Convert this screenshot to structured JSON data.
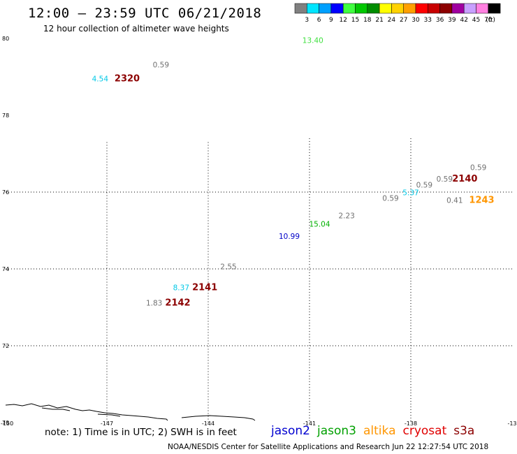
{
  "header": {
    "title": "12:00 – 23:59 UTC 06/21/2018",
    "subtitle": "12 hour collection of altimeter wave heights"
  },
  "colorbar": {
    "unit": "(ft)",
    "bins": [
      {
        "label": "3",
        "color": "#808080"
      },
      {
        "label": "6",
        "color": "#00e5ff"
      },
      {
        "label": "9",
        "color": "#00a0ff"
      },
      {
        "label": "12",
        "color": "#0000ff"
      },
      {
        "label": "15",
        "color": "#40ff40"
      },
      {
        "label": "18",
        "color": "#00c800"
      },
      {
        "label": "21",
        "color": "#008c00"
      },
      {
        "label": "24",
        "color": "#ffff00"
      },
      {
        "label": "27",
        "color": "#ffd200"
      },
      {
        "label": "30",
        "color": "#ffa000"
      },
      {
        "label": "33",
        "color": "#ff0000"
      },
      {
        "label": "36",
        "color": "#c80000"
      },
      {
        "label": "39",
        "color": "#8c0000"
      },
      {
        "label": "42",
        "color": "#a000a0"
      },
      {
        "label": "45",
        "color": "#c8a0ff"
      },
      {
        "label": "70",
        "color": "#ff80e0"
      },
      {
        "label": "",
        "color": "#000000"
      }
    ]
  },
  "axes": {
    "lat_labels": [
      {
        "text": "80",
        "lat": 80
      },
      {
        "text": "78",
        "lat": 78
      },
      {
        "text": "76",
        "lat": 76
      },
      {
        "text": "74",
        "lat": 74
      },
      {
        "text": "72",
        "lat": 72
      },
      {
        "text": "70",
        "lat": 70
      }
    ],
    "lon_labels": [
      {
        "text": "-150",
        "lon": -150
      },
      {
        "text": "-147",
        "lon": -147
      },
      {
        "text": "-144",
        "lon": -144
      },
      {
        "text": "-141",
        "lon": -141
      },
      {
        "text": "-138",
        "lon": -138
      },
      {
        "text": "-13",
        "lon": -135
      }
    ]
  },
  "observations": [
    {
      "text": "13.40",
      "lon": -140.9,
      "lat": 79.88,
      "color": "#40e040"
    },
    {
      "text": "0.59",
      "lon": -145.4,
      "lat": 79.25,
      "color": "#707070"
    },
    {
      "text": "4.54",
      "lon": -147.2,
      "lat": 78.88,
      "color": "#00c8e6"
    },
    {
      "text": "2320",
      "lon": -146.4,
      "lat": 78.88,
      "color": "#8c0000",
      "bold": true
    },
    {
      "text": "0.59",
      "lon": -136.0,
      "lat": 76.57,
      "color": "#707070"
    },
    {
      "text": "2140",
      "lon": -136.4,
      "lat": 76.27,
      "color": "#8c0000",
      "bold": true
    },
    {
      "text": "0.59",
      "lon": -137.0,
      "lat": 76.27,
      "color": "#707070"
    },
    {
      "text": "0.59",
      "lon": -137.6,
      "lat": 76.12,
      "color": "#707070"
    },
    {
      "text": "5.37",
      "lon": -138.0,
      "lat": 75.92,
      "color": "#00c8e6"
    },
    {
      "text": "0.59",
      "lon": -138.6,
      "lat": 75.77,
      "color": "#707070"
    },
    {
      "text": "0.41",
      "lon": -136.7,
      "lat": 75.72,
      "color": "#707070"
    },
    {
      "text": "1243",
      "lon": -135.9,
      "lat": 75.72,
      "color": "#ff9600",
      "bold": true
    },
    {
      "text": "2.23",
      "lon": -139.9,
      "lat": 75.32,
      "color": "#707070"
    },
    {
      "text": "15.04",
      "lon": -140.7,
      "lat": 75.1,
      "color": "#00b000"
    },
    {
      "text": "10.99",
      "lon": -141.6,
      "lat": 74.78,
      "color": "#0000c8"
    },
    {
      "text": "2.55",
      "lon": -143.4,
      "lat": 73.99,
      "color": "#707070"
    },
    {
      "text": "8.37",
      "lon": -144.8,
      "lat": 73.45,
      "color": "#00c8e6"
    },
    {
      "text": "2141",
      "lon": -144.1,
      "lat": 73.45,
      "color": "#8c0000",
      "bold": true
    },
    {
      "text": "1.83",
      "lon": -145.6,
      "lat": 73.05,
      "color": "#707070"
    },
    {
      "text": "2142",
      "lon": -144.9,
      "lat": 73.05,
      "color": "#8c0000",
      "bold": true
    }
  ],
  "footer": {
    "note": "note: 1) Time is in UTC; 2) SWH is in feet",
    "credit": "NOAA/NESDIS Center for Satellite Applications and Research   Jun 22 12:27:54 UTC 2018",
    "satellites": [
      {
        "name": "jason2",
        "color": "#0000d0"
      },
      {
        "name": "jason3",
        "color": "#00a000"
      },
      {
        "name": "altika",
        "color": "#ff9600"
      },
      {
        "name": "cryosat",
        "color": "#e00000"
      },
      {
        "name": "s3a",
        "color": "#8c0000"
      }
    ]
  }
}
